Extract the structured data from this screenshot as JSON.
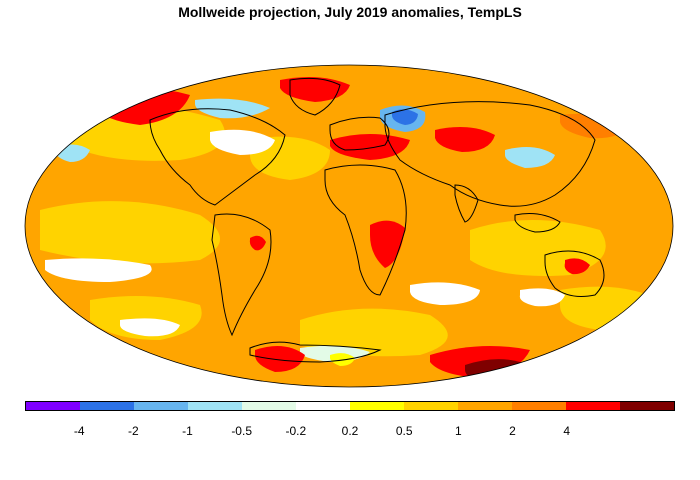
{
  "title": "Mollweide projection, July 2019 anomalies, TempLS",
  "colorbar": {
    "colors": [
      "#7f00ff",
      "#2c72e6",
      "#67b5ef",
      "#9fe3f5",
      "#e3fbe7",
      "#ffffff",
      "#ffff00",
      "#ffd300",
      "#ffa500",
      "#ff7f00",
      "#ff0000",
      "#7f0000"
    ],
    "ticks": [
      "-4",
      "-2",
      "-1",
      "-0.5",
      "-0.2",
      "0.2",
      "0.5",
      "1",
      "2",
      "4"
    ]
  },
  "map": {
    "ocean_color": "#ffa500",
    "land_outline_color": "#000000"
  }
}
